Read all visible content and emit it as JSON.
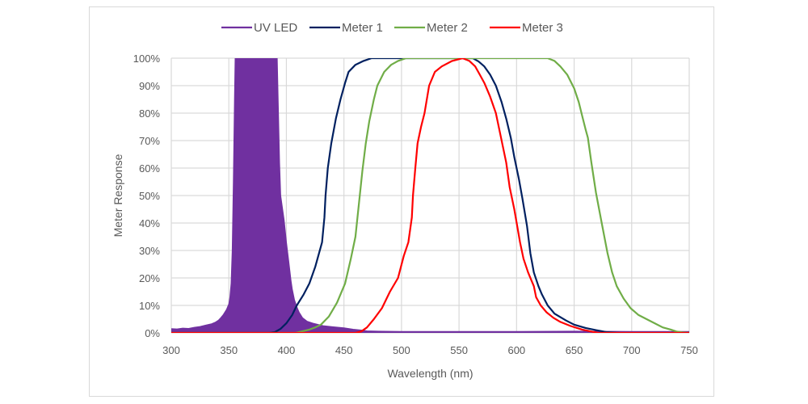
{
  "chart_data": {
    "type": "line",
    "title": "",
    "xlabel": "Wavelength (nm)",
    "ylabel": "Meter Response",
    "xlim": [
      300,
      750
    ],
    "ylim": [
      0,
      100
    ],
    "x_ticks": [
      300,
      350,
      400,
      450,
      500,
      550,
      600,
      650,
      700,
      750
    ],
    "x_tick_labels": [
      "300",
      "350",
      "400",
      "450",
      "500",
      "550",
      "600",
      "650",
      "700",
      "750"
    ],
    "y_ticks": [
      0,
      10,
      20,
      30,
      40,
      50,
      60,
      70,
      80,
      90,
      100
    ],
    "y_tick_labels": [
      "0%",
      "10%",
      "20%",
      "30%",
      "40%",
      "50%",
      "60%",
      "70%",
      "80%",
      "90%",
      "100%"
    ],
    "grid": true,
    "legend_position": "top",
    "series": [
      {
        "name": "UV LED",
        "color": "#7030A0",
        "style": "filled-area-clipped",
        "points": [
          [
            300,
            1.5
          ],
          [
            305,
            1.4
          ],
          [
            310,
            1.7
          ],
          [
            315,
            1.6
          ],
          [
            320,
            2.0
          ],
          [
            325,
            2.3
          ],
          [
            330,
            2.8
          ],
          [
            335,
            3.3
          ],
          [
            338,
            3.8
          ],
          [
            341,
            4.6
          ],
          [
            343,
            5.5
          ],
          [
            345,
            6.5
          ],
          [
            348,
            8.5
          ],
          [
            350,
            10.5
          ],
          [
            351,
            13
          ],
          [
            352,
            18
          ],
          [
            353,
            30
          ],
          [
            354,
            55
          ],
          [
            355,
            85
          ],
          [
            355.5,
            100
          ],
          [
            360,
            130
          ],
          [
            370,
            140
          ],
          [
            380,
            140
          ],
          [
            390,
            120
          ],
          [
            392,
            100
          ],
          [
            394,
            62
          ],
          [
            395,
            50
          ],
          [
            398,
            41
          ],
          [
            400,
            33
          ],
          [
            402,
            26
          ],
          [
            404,
            19
          ],
          [
            405,
            16
          ],
          [
            407,
            12
          ],
          [
            409,
            9.5
          ],
          [
            411,
            7.5
          ],
          [
            414,
            5.5
          ],
          [
            418,
            4.2
          ],
          [
            423,
            3.5
          ],
          [
            428,
            3.0
          ],
          [
            432,
            2.6
          ],
          [
            440,
            2.2
          ],
          [
            450,
            1.8
          ],
          [
            458,
            1.3
          ],
          [
            465,
            1.0
          ],
          [
            470,
            0.7
          ],
          [
            480,
            0.6
          ],
          [
            500,
            0.5
          ],
          [
            550,
            0.5
          ],
          [
            600,
            0.5
          ],
          [
            650,
            0.6
          ],
          [
            700,
            0.5
          ],
          [
            740,
            0.5
          ],
          [
            750,
            0.5
          ]
        ]
      },
      {
        "name": "Meter 1",
        "color": "#002060",
        "points": [
          [
            300,
            0
          ],
          [
            385,
            0
          ],
          [
            390,
            0.3
          ],
          [
            395,
            1.5
          ],
          [
            400,
            3.5
          ],
          [
            405,
            6.5
          ],
          [
            409,
            10
          ],
          [
            415,
            14
          ],
          [
            420,
            18
          ],
          [
            425,
            24
          ],
          [
            431,
            33
          ],
          [
            433,
            42
          ],
          [
            434,
            50
          ],
          [
            436,
            60
          ],
          [
            439,
            69
          ],
          [
            443,
            78
          ],
          [
            447,
            85
          ],
          [
            451,
            91
          ],
          [
            454,
            95
          ],
          [
            460,
            97.6
          ],
          [
            467,
            99
          ],
          [
            474,
            100
          ],
          [
            562,
            100
          ],
          [
            567,
            98.8
          ],
          [
            572,
            97
          ],
          [
            577,
            94
          ],
          [
            582,
            90
          ],
          [
            587,
            84
          ],
          [
            591,
            78
          ],
          [
            595,
            71
          ],
          [
            598,
            64
          ],
          [
            602,
            56
          ],
          [
            605,
            49
          ],
          [
            609,
            39
          ],
          [
            612,
            29
          ],
          [
            615,
            22
          ],
          [
            619,
            17
          ],
          [
            622,
            14
          ],
          [
            627,
            10
          ],
          [
            633,
            7
          ],
          [
            643,
            4.5
          ],
          [
            650,
            3
          ],
          [
            660,
            1.8
          ],
          [
            669,
            1
          ],
          [
            678,
            0.3
          ],
          [
            690,
            0
          ],
          [
            750,
            0
          ]
        ]
      },
      {
        "name": "Meter 2",
        "color": "#70AD47",
        "points": [
          [
            300,
            0
          ],
          [
            408,
            0
          ],
          [
            413,
            0.5
          ],
          [
            420,
            1.2
          ],
          [
            425,
            2
          ],
          [
            430,
            3
          ],
          [
            437,
            6
          ],
          [
            444,
            11
          ],
          [
            451,
            18
          ],
          [
            456,
            27
          ],
          [
            460,
            35
          ],
          [
            463,
            47
          ],
          [
            466,
            59
          ],
          [
            469,
            69
          ],
          [
            472,
            77
          ],
          [
            476,
            85
          ],
          [
            479,
            90
          ],
          [
            485,
            95
          ],
          [
            491,
            97.6
          ],
          [
            497,
            99
          ],
          [
            504,
            100
          ],
          [
            627,
            100
          ],
          [
            633,
            99
          ],
          [
            638,
            97
          ],
          [
            644,
            94
          ],
          [
            650,
            89
          ],
          [
            654,
            84
          ],
          [
            657,
            79
          ],
          [
            660,
            74
          ],
          [
            662,
            71
          ],
          [
            665,
            62
          ],
          [
            669,
            51
          ],
          [
            674,
            40
          ],
          [
            679,
            29
          ],
          [
            683,
            22
          ],
          [
            687,
            17
          ],
          [
            693,
            12.5
          ],
          [
            699,
            9
          ],
          [
            706,
            6.5
          ],
          [
            713,
            5
          ],
          [
            720,
            3.5
          ],
          [
            727,
            2
          ],
          [
            734,
            1.2
          ],
          [
            739,
            0.5
          ],
          [
            744,
            0.2
          ],
          [
            750,
            0
          ]
        ]
      },
      {
        "name": "Meter 3",
        "color": "#FF0000",
        "points": [
          [
            300,
            0
          ],
          [
            460,
            0
          ],
          [
            465,
            0.5
          ],
          [
            470,
            2
          ],
          [
            476,
            5
          ],
          [
            483,
            9
          ],
          [
            490,
            15
          ],
          [
            497,
            20
          ],
          [
            502,
            28
          ],
          [
            506,
            33
          ],
          [
            509,
            42
          ],
          [
            510,
            50
          ],
          [
            512,
            60
          ],
          [
            514,
            69
          ],
          [
            517,
            75
          ],
          [
            520,
            80
          ],
          [
            524,
            90
          ],
          [
            529,
            95
          ],
          [
            535,
            97
          ],
          [
            544,
            99
          ],
          [
            553,
            100
          ],
          [
            559,
            99
          ],
          [
            564,
            97
          ],
          [
            568,
            94
          ],
          [
            572,
            91
          ],
          [
            577,
            86
          ],
          [
            582,
            80
          ],
          [
            586,
            72
          ],
          [
            591,
            62
          ],
          [
            594,
            53
          ],
          [
            598,
            45
          ],
          [
            603,
            33
          ],
          [
            606,
            27
          ],
          [
            610,
            22
          ],
          [
            615,
            17
          ],
          [
            617,
            13
          ],
          [
            621,
            10
          ],
          [
            626,
            7.5
          ],
          [
            632,
            5.5
          ],
          [
            638,
            4
          ],
          [
            647,
            2.5
          ],
          [
            657,
            1.2
          ],
          [
            665,
            0.5
          ],
          [
            671,
            0
          ],
          [
            750,
            0
          ]
        ]
      }
    ]
  }
}
